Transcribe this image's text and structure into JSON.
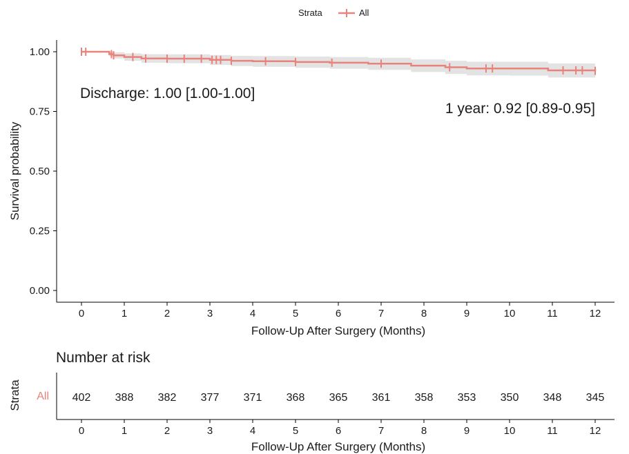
{
  "legend": {
    "title": "Strata",
    "entries": [
      "All"
    ]
  },
  "annotations": {
    "discharge": "Discharge: 1.00 [1.00-1.00]",
    "one_year": "1 year: 0.92 [0.89-0.95]"
  },
  "chart_data": {
    "type": "line",
    "step": true,
    "ylabel": "Survival probability",
    "xlabel": "Follow-Up After Surgery (Months)",
    "xlim": [
      0,
      12
    ],
    "ylim": [
      0,
      1
    ],
    "x_ticks": [
      "0",
      "1",
      "2",
      "3",
      "4",
      "5",
      "6",
      "7",
      "8",
      "9",
      "10",
      "11",
      "12"
    ],
    "y_ticks": [
      "0.00",
      "0.25",
      "0.50",
      "0.75",
      "1.00"
    ],
    "color": "#e8827a",
    "band_color": "#e3e3e3",
    "series": [
      {
        "name": "All",
        "x": [
          0,
          0.65,
          0.75,
          1.0,
          1.4,
          2.0,
          3.0,
          3.5,
          4.0,
          5.0,
          5.8,
          6.7,
          7.7,
          8.5,
          9.0,
          10.0,
          10.9,
          12.0
        ],
        "y": [
          1.0,
          0.99,
          0.985,
          0.978,
          0.972,
          0.971,
          0.966,
          0.962,
          0.96,
          0.957,
          0.954,
          0.95,
          0.942,
          0.935,
          0.93,
          0.93,
          0.922,
          0.92
        ],
        "lower": [
          1.0,
          0.98,
          0.972,
          0.962,
          0.954,
          0.952,
          0.945,
          0.94,
          0.937,
          0.933,
          0.929,
          0.924,
          0.915,
          0.907,
          0.901,
          0.9,
          0.892,
          0.89
        ],
        "upper": [
          1.0,
          1.0,
          0.998,
          0.993,
          0.99,
          0.989,
          0.986,
          0.983,
          0.982,
          0.98,
          0.978,
          0.975,
          0.968,
          0.962,
          0.958,
          0.958,
          0.951,
          0.95
        ]
      }
    ],
    "censor_x": [
      0.0,
      0.1,
      0.7,
      0.75,
      1.2,
      1.5,
      2.0,
      2.4,
      2.8,
      3.05,
      3.15,
      3.25,
      3.5,
      4.3,
      5.0,
      5.85,
      7.0,
      8.6,
      9.45,
      9.6,
      11.25,
      11.55,
      11.7,
      12.0
    ],
    "risk_table": {
      "title": "Number at risk",
      "ylabel": "Strata",
      "strata": "All",
      "times": [
        "0",
        "1",
        "2",
        "3",
        "4",
        "5",
        "6",
        "7",
        "8",
        "9",
        "10",
        "11",
        "12"
      ],
      "values": [
        402,
        388,
        382,
        377,
        371,
        368,
        365,
        361,
        358,
        353,
        350,
        348,
        345
      ]
    }
  }
}
